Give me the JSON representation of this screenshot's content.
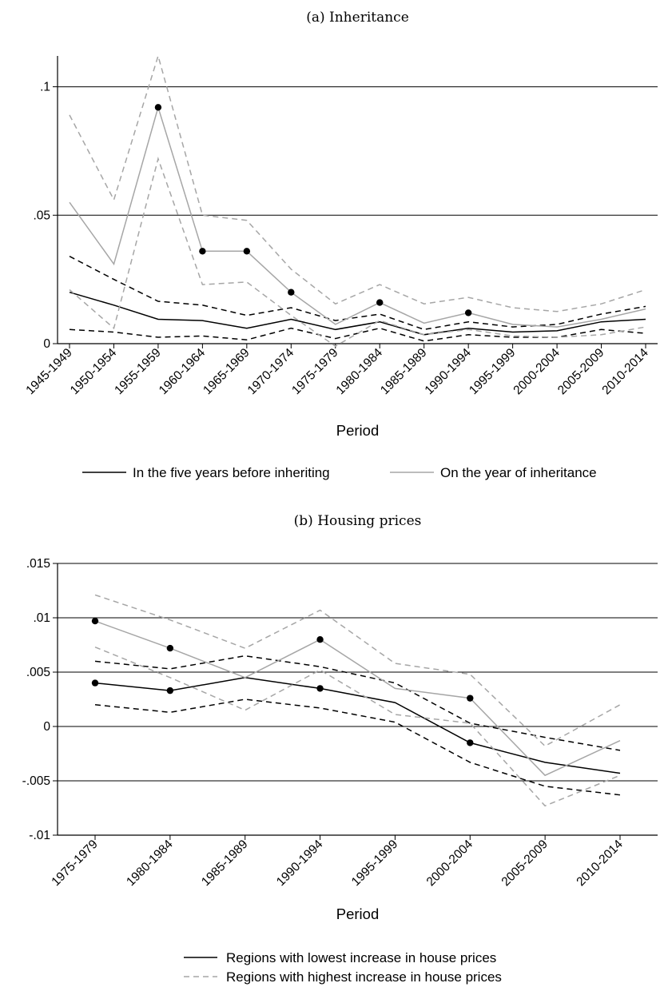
{
  "chart_data": [
    {
      "panel_label": "(a) Inheritance",
      "type": "line",
      "xlabel": "Period",
      "ylabel": "",
      "ylim": [
        0,
        0.112
      ],
      "yticks": [
        0,
        0.05,
        0.1
      ],
      "ytick_labels": [
        "0",
        ".05",
        ".1"
      ],
      "grid": "horizontal",
      "legend_position": "bottom",
      "categories": [
        "1945-1949",
        "1950-1954",
        "1955-1959",
        "1960-1964",
        "1965-1969",
        "1970-1974",
        "1975-1979",
        "1980-1984",
        "1985-1989",
        "1990-1994",
        "1995-1999",
        "2000-2004",
        "2005-2009",
        "2010-2014"
      ],
      "series": [
        {
          "name": "In the five years before inheriting",
          "color": "#000000",
          "values": [
            0.02,
            0.015,
            0.0095,
            0.009,
            0.006,
            0.0095,
            0.0055,
            0.0085,
            0.0035,
            0.006,
            0.0045,
            0.005,
            0.0085,
            0.0095
          ],
          "upper": [
            0.034,
            0.025,
            0.0165,
            0.015,
            0.011,
            0.014,
            0.009,
            0.0115,
            0.0055,
            0.0085,
            0.0065,
            0.0075,
            0.0115,
            0.0145
          ],
          "lower": [
            0.0055,
            0.0045,
            0.0025,
            0.003,
            0.0015,
            0.006,
            0.002,
            0.006,
            0.001,
            0.0035,
            0.0025,
            0.0025,
            0.0055,
            0.004
          ],
          "markers": [
            false,
            false,
            false,
            false,
            false,
            false,
            false,
            false,
            false,
            false,
            false,
            false,
            false,
            false
          ]
        },
        {
          "name": "On the year of inheritance",
          "color": "#a6a6a6",
          "values": [
            0.055,
            0.031,
            0.092,
            0.036,
            0.036,
            0.02,
            0.0075,
            0.016,
            0.008,
            0.012,
            0.0075,
            0.0065,
            0.0095,
            0.0135
          ],
          "upper": [
            0.089,
            0.056,
            0.112,
            0.05,
            0.048,
            0.029,
            0.0155,
            0.023,
            0.0155,
            0.018,
            0.014,
            0.0125,
            0.0155,
            0.021
          ],
          "lower": [
            0.021,
            0.006,
            0.072,
            0.023,
            0.024,
            0.011,
            -0.001,
            0.009,
            0.0035,
            0.0055,
            0.003,
            0.0025,
            0.0035,
            0.0065
          ],
          "markers": [
            false,
            false,
            true,
            true,
            true,
            true,
            false,
            true,
            false,
            true,
            false,
            false,
            false,
            false
          ]
        }
      ]
    },
    {
      "panel_label": "(b) Housing prices",
      "type": "line",
      "xlabel": "Period",
      "ylabel": "",
      "ylim": [
        -0.01,
        0.015
      ],
      "yticks": [
        -0.01,
        -0.005,
        0,
        0.005,
        0.01,
        0.015
      ],
      "ytick_labels": [
        "-.01",
        "-.005",
        "0",
        ".005",
        ".01",
        ".015"
      ],
      "grid": "horizontal",
      "legend_position": "bottom",
      "categories": [
        "1975-1979",
        "1980-1984",
        "1985-1989",
        "1990-1994",
        "1995-1999",
        "2000-2004",
        "2005-2009",
        "2010-2014"
      ],
      "series": [
        {
          "name": "Regions with lowest increase in house prices",
          "color": "#000000",
          "values": [
            0.004,
            0.0033,
            0.0045,
            0.0035,
            0.0022,
            -0.0015,
            -0.0033,
            -0.0043
          ],
          "upper": [
            0.006,
            0.0053,
            0.0065,
            0.0055,
            0.004,
            0.0003,
            -0.001,
            -0.0022
          ],
          "lower": [
            0.002,
            0.0013,
            0.0025,
            0.0017,
            0.0004,
            -0.0033,
            -0.0055,
            -0.0063
          ],
          "markers": [
            true,
            true,
            false,
            true,
            false,
            true,
            false,
            false
          ]
        },
        {
          "name": "Regions with highest increase in house prices",
          "color": "#a6a6a6",
          "values": [
            0.0097,
            0.0072,
            0.0045,
            0.008,
            0.0035,
            0.0026,
            -0.0045,
            -0.0013
          ],
          "upper": [
            0.0121,
            0.0098,
            0.0072,
            0.0107,
            0.0058,
            0.0048,
            -0.0018,
            0.002
          ],
          "lower": [
            0.0073,
            0.0045,
            0.0015,
            0.0052,
            0.0011,
            0.0003,
            -0.0073,
            -0.0045
          ],
          "markers": [
            true,
            true,
            false,
            true,
            false,
            true,
            false,
            false
          ]
        }
      ]
    }
  ]
}
